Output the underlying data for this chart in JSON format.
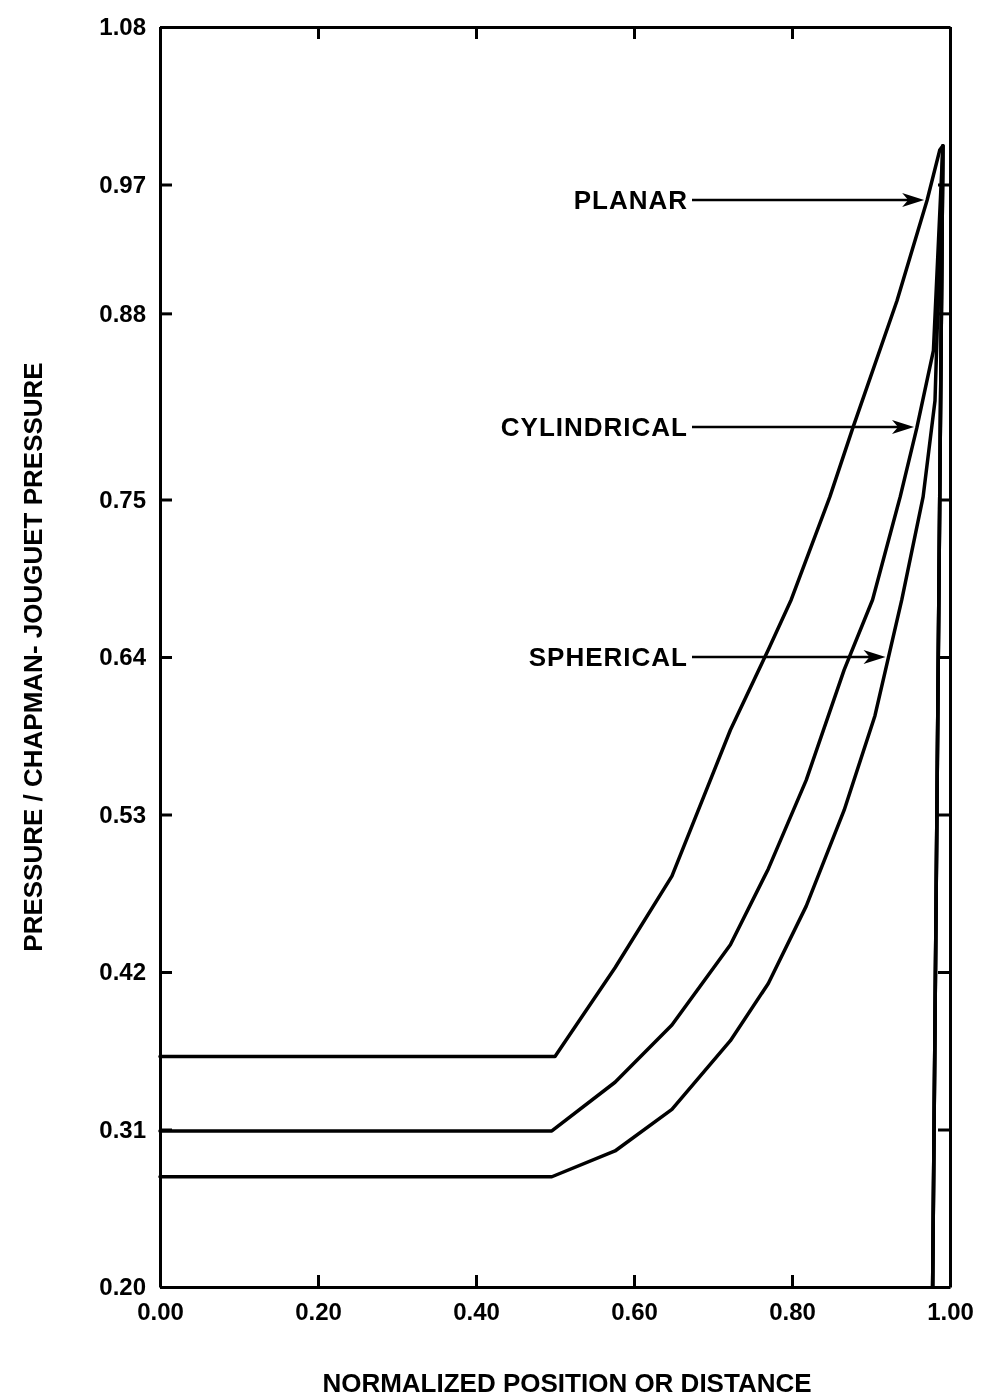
{
  "chart_data": {
    "type": "line",
    "xlabel": "NORMALIZED POSITION OR DISTANCE",
    "ylabel": "PRESSURE / CHAPMAN- JOUGUET PRESSURE",
    "xlim": [
      0,
      1
    ],
    "xticks": [
      {
        "value": 0,
        "label": "0.00"
      },
      {
        "value": 0.2,
        "label": "0.20"
      },
      {
        "value": 0.4,
        "label": "0.40"
      },
      {
        "value": 0.6,
        "label": "0.60"
      },
      {
        "value": 0.8,
        "label": "0.80"
      },
      {
        "value": 1,
        "label": "1.00"
      }
    ],
    "ylim": [
      0.2,
      1.08
    ],
    "yticks": [
      {
        "value": 0.2,
        "label": "0.20"
      },
      0.31,
      0.42,
      0.53,
      0.64,
      0.75,
      0.88,
      0.97,
      1.08
    ],
    "grid": false,
    "marker": "none",
    "line_style": "solid",
    "series": [
      {
        "color": "#000000",
        "x": [
          0,
          0.5,
          0.576,
          0.648,
          0.722,
          0.77,
          0.799,
          0.848,
          0.877,
          0.933,
          0.971,
          0.987,
          0.991,
          0.978
        ],
        "values": [
          0.361,
          0.361,
          0.423,
          0.487,
          0.589,
          0.645,
          0.68,
          0.752,
          0.8,
          0.889,
          0.959,
          0.994,
          0.997,
          0.2
        ]
      },
      {
        "color": "#000000",
        "x": [
          0,
          0.496,
          0.576,
          0.648,
          0.722,
          0.77,
          0.818,
          0.866,
          0.902,
          0.937,
          0.958,
          0.979,
          0.991,
          0.978
        ],
        "values": [
          0.309,
          0.309,
          0.343,
          0.383,
          0.439,
          0.492,
          0.554,
          0.631,
          0.68,
          0.752,
          0.8,
          0.854,
          0.997,
          0.2
        ]
      },
      {
        "color": "#000000",
        "x": [
          0,
          0.496,
          0.576,
          0.648,
          0.722,
          0.77,
          0.818,
          0.866,
          0.905,
          0.939,
          0.966,
          0.981,
          0.991,
          0.978
        ],
        "values": [
          0.277,
          0.277,
          0.295,
          0.324,
          0.372,
          0.412,
          0.466,
          0.533,
          0.599,
          0.68,
          0.752,
          0.819,
          0.997,
          0.2
        ]
      }
    ],
    "annotations": [
      "PLANAR",
      "CYLINDRICAL",
      "SPHERICAL"
    ]
  }
}
